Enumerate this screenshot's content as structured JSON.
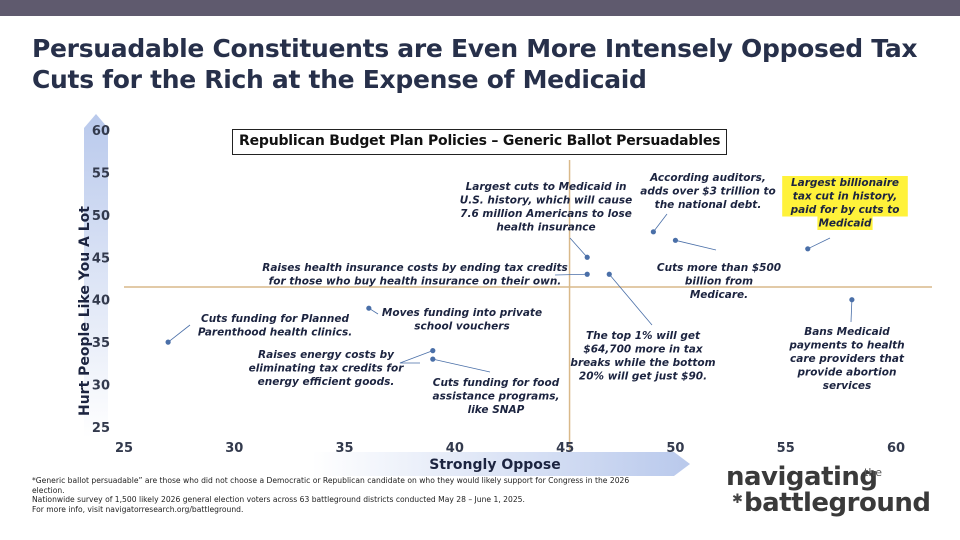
{
  "slide": {
    "title": "Persuadable Constituents are Even More Intensely Opposed Tax Cuts for the Rich at the Expense of Medicaid",
    "footnotes": [
      "*Generic ballot persuadable” are those who did not choose a Democratic or Republican candidate on who they would likely support for Congress in the 2026 election.",
      "Nationwide survey of 1,500 likely 2026 general election voters across 63 battleground districts conducted May 28 – June 1, 2025.",
      "For more info, visit navigatorresearch.org/battleground."
    ],
    "logo": {
      "line1": "navigating",
      "the": "the",
      "line2": "battleground"
    }
  },
  "colors": {
    "top_bar": "#5f5a6e",
    "title": "#27304a",
    "points": "#4a6fa8",
    "reference_lines": "#d9b98a",
    "highlight": "#fff23a",
    "axis_gradient_start": "#ffffff",
    "axis_gradient_end": "#b9c9ec"
  },
  "chart_data": {
    "type": "scatter",
    "title": "Republican Budget Plan Policies – Generic Ballot Persuadables",
    "xlabel": "Strongly Oppose",
    "ylabel": "Hurt People Like You A Lot",
    "xlim": [
      25,
      60
    ],
    "ylim": [
      25,
      60
    ],
    "xticks": [
      "25",
      "30",
      "35",
      "40",
      "45",
      "50",
      "55",
      "60"
    ],
    "yticks": [
      "25",
      "30",
      "35",
      "40",
      "45",
      "50",
      "55",
      "60"
    ],
    "grid": false,
    "reference_lines": {
      "x": 45.2,
      "y": 41.5
    },
    "points": [
      {
        "x": 27,
        "y": 35,
        "label": [
          "Cuts funding for Planned",
          "Parenthood health clinics."
        ],
        "highlight": false
      },
      {
        "x": 36.1,
        "y": 39,
        "label": [
          "Moves funding into private",
          "school vouchers"
        ],
        "highlight": false
      },
      {
        "x": 39,
        "y": 34,
        "label": [
          "Raises energy costs by",
          "eliminating tax credits for",
          "energy efficient goods."
        ],
        "highlight": false
      },
      {
        "x": 39,
        "y": 33,
        "label": [
          "Cuts funding for food",
          "assistance programs,",
          "like SNAP"
        ],
        "highlight": false
      },
      {
        "x": 46,
        "y": 45,
        "label": [
          "Largest cuts to Medicaid in",
          "U.S. history, which will cause",
          "7.6 million Americans to lose",
          "health insurance"
        ],
        "highlight": false
      },
      {
        "x": 46,
        "y": 43,
        "label": [
          "Raises health insurance costs by ending tax credits",
          "for those who buy health insurance on their own."
        ],
        "highlight": false
      },
      {
        "x": 47,
        "y": 43,
        "label": [
          "The top 1% will get",
          "$64,700 more in tax",
          "breaks while the bottom",
          "20% will get just $90."
        ],
        "highlight": false
      },
      {
        "x": 49,
        "y": 48,
        "label": [
          "According auditors,",
          "adds over $3 trillion to",
          "the national debt."
        ],
        "highlight": false
      },
      {
        "x": 50,
        "y": 47,
        "label": [
          "Cuts more than $500",
          "billion from",
          "Medicare."
        ],
        "highlight": false
      },
      {
        "x": 56,
        "y": 46,
        "label": [
          "Largest billionaire",
          "tax cut in history,",
          "paid for by cuts to",
          "Medicaid"
        ],
        "highlight": true
      },
      {
        "x": 58,
        "y": 40,
        "label": [
          "Bans Medicaid",
          "payments to health",
          "care providers that",
          "provide abortion",
          "services"
        ],
        "highlight": false
      }
    ]
  }
}
